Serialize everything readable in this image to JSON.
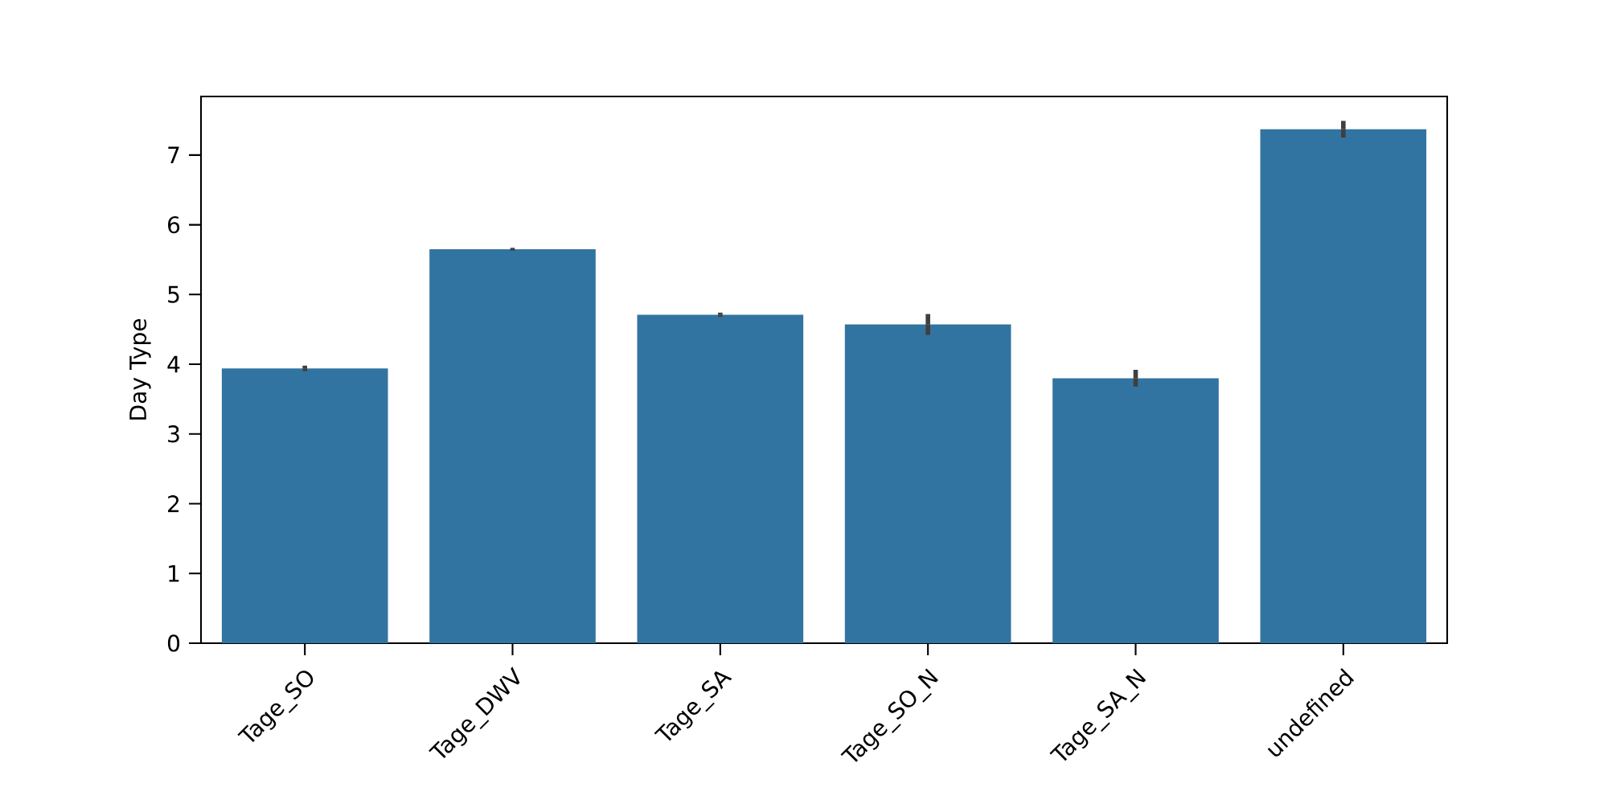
{
  "chart_data": {
    "type": "bar",
    "categories": [
      "Tage_SO",
      "Tage_DWV",
      "Tage_SA",
      "Tage_SO_N",
      "Tage_SA_N",
      "undefined"
    ],
    "values": [
      3.94,
      5.65,
      4.71,
      4.57,
      3.8,
      7.37
    ],
    "errors": [
      0.04,
      0.02,
      0.03,
      0.15,
      0.12,
      0.12
    ],
    "color": "#3274a1",
    "ylabel": "Day Type",
    "ylim": [
      0,
      7.84
    ],
    "yticks": [
      0,
      1,
      2,
      3,
      4,
      5,
      6,
      7
    ],
    "grid": false
  }
}
